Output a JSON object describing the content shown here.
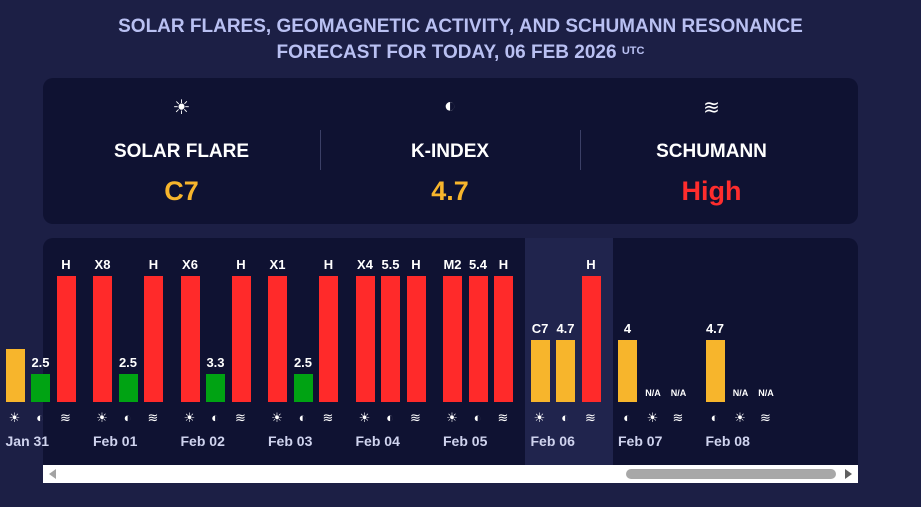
{
  "header": {
    "title_line1": "SOLAR FLARES, GEOMAGNETIC ACTIVITY, AND SCHUMANN RESONANCE",
    "title_line2": "FORECAST FOR TODAY, 06 FEB 2026",
    "title_sup": "UTC"
  },
  "summary": {
    "solar": {
      "icon": "☀",
      "label": "SOLAR FLARE",
      "value": "C7",
      "color": "#f7b52c"
    },
    "kindex": {
      "icon": "◐",
      "label": "K-INDEX",
      "value": "4.7",
      "color": "#f7b52c"
    },
    "schumann": {
      "icon": "≋",
      "label": "SCHUMANN",
      "value": "High",
      "color": "#ff2d2d"
    }
  },
  "chart_data": {
    "type": "bar",
    "icons": {
      "solar": "☀",
      "kindex": "◐",
      "schumann": "≋"
    },
    "colors": {
      "yellow": "#f7b52c",
      "green": "#00a313",
      "red": "#ff2a2a"
    },
    "days": [
      {
        "date": "Jan 31",
        "solar": {
          "label": "",
          "level": 0.42,
          "color": "yellow"
        },
        "kindex": {
          "label": "2.5",
          "level": 0.22,
          "color": "green"
        },
        "schumann": {
          "label": "H",
          "level": 1.0,
          "color": "red"
        }
      },
      {
        "date": "Feb 01",
        "solar": {
          "label": "X8",
          "level": 1.0,
          "color": "red"
        },
        "kindex": {
          "label": "2.5",
          "level": 0.22,
          "color": "green"
        },
        "schumann": {
          "label": "H",
          "level": 1.0,
          "color": "red"
        }
      },
      {
        "date": "Feb 02",
        "solar": {
          "label": "X6",
          "level": 1.0,
          "color": "red"
        },
        "kindex": {
          "label": "3.3",
          "level": 0.22,
          "color": "green"
        },
        "schumann": {
          "label": "H",
          "level": 1.0,
          "color": "red"
        }
      },
      {
        "date": "Feb 03",
        "solar": {
          "label": "X1",
          "level": 1.0,
          "color": "red"
        },
        "kindex": {
          "label": "2.5",
          "level": 0.22,
          "color": "green"
        },
        "schumann": {
          "label": "H",
          "level": 1.0,
          "color": "red"
        }
      },
      {
        "date": "Feb 04",
        "solar": {
          "label": "X4",
          "level": 1.0,
          "color": "red"
        },
        "kindex": {
          "label": "5.5",
          "level": 1.0,
          "color": "red"
        },
        "schumann": {
          "label": "H",
          "level": 1.0,
          "color": "red"
        }
      },
      {
        "date": "Feb 05",
        "solar": {
          "label": "M2",
          "level": 1.0,
          "color": "red"
        },
        "kindex": {
          "label": "5.4",
          "level": 1.0,
          "color": "red"
        },
        "schumann": {
          "label": "H",
          "level": 1.0,
          "color": "red"
        }
      },
      {
        "date": "Feb 06",
        "today": true,
        "solar": {
          "label": "C7",
          "level": 0.49,
          "color": "yellow"
        },
        "kindex": {
          "label": "4.7",
          "level": 0.49,
          "color": "yellow"
        },
        "schumann": {
          "label": "H",
          "level": 1.0,
          "color": "red"
        }
      },
      {
        "date": "Feb 07",
        "solar": null,
        "kindex": {
          "label": "4",
          "level": 0.49,
          "color": "yellow"
        },
        "schumann": {
          "label": "N/A",
          "level": 0,
          "color": ""
        },
        "extra": {
          "label": "N/A"
        }
      },
      {
        "date": "Feb 08",
        "solar": null,
        "kindex": {
          "label": "4.7",
          "level": 0.49,
          "color": "yellow"
        },
        "schumann": {
          "label": "N/A",
          "level": 0,
          "color": ""
        },
        "extra": {
          "label": "N/A"
        }
      }
    ]
  }
}
